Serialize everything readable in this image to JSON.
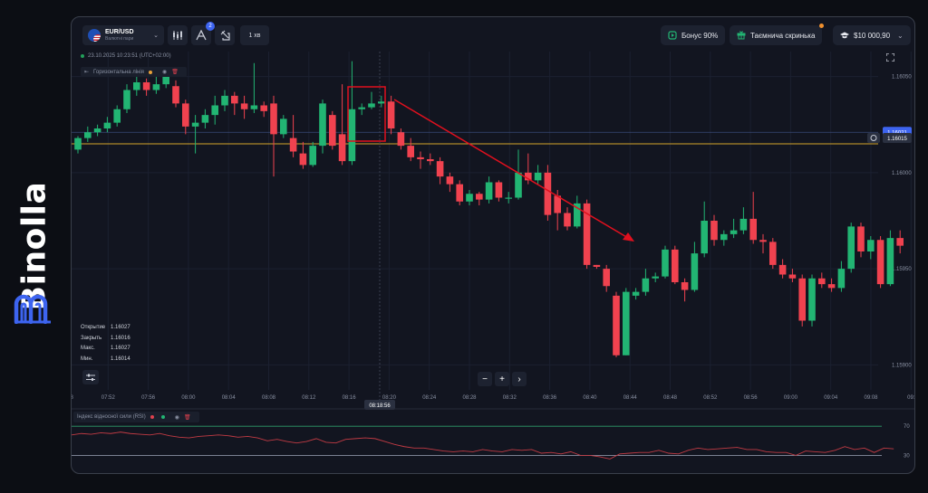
{
  "brand": {
    "name": "Binolla"
  },
  "header": {
    "asset": {
      "pair": "EUR/USD",
      "category": "Валютні пари"
    },
    "indicators_badge": "2",
    "timeframe": "1 хв",
    "bonus_label": "Бонус 90%",
    "mystery_box_label": "Таємнича скринька",
    "balance": "$10 000,90"
  },
  "chart_info": {
    "datetime": "23.10.2025  10:23:51  (UTC+02:00)",
    "drawing_tool_label": "Горизонтальна лінія"
  },
  "ohlc": [
    {
      "label": "Открытие",
      "value": "1.16027"
    },
    {
      "label": "Закрыть",
      "value": "1.16016"
    },
    {
      "label": "Макс.",
      "value": "1.16027"
    },
    {
      "label": "Мин.",
      "value": "1.16014"
    }
  ],
  "zoom": {
    "minus": "−",
    "plus": "+",
    "next": "›"
  },
  "rsi_label": "Індекс відносної сили (RSI)",
  "colors": {
    "up": "#22b573",
    "down": "#f0424f",
    "accent": "#3d64f0",
    "hline": "#d4a52a",
    "arrow": "#e0101e"
  },
  "chart_data": {
    "type": "candlestick",
    "y_ticks": [
      "1.16050",
      "1.16000",
      "1.15950",
      "1.15900"
    ],
    "y_tick_values": [
      1.1605,
      1.16,
      1.1595,
      1.159
    ],
    "x_ticks": [
      "7:48",
      "07:52",
      "07:56",
      "08:00",
      "08:04",
      "08:08",
      "08:12",
      "08:16",
      "08:20",
      "08:24",
      "08:28",
      "08:32",
      "08:36",
      "08:40",
      "08:44",
      "08:48",
      "08:52",
      "08:56",
      "09:00",
      "09:04",
      "09:08",
      "09:"
    ],
    "crosshair_time": "08:18:56",
    "price_labels": {
      "current": "1.16021",
      "horizontal_line": "1.16015"
    },
    "horizontal_line_value": 1.16015,
    "rsi_levels": [
      "70",
      "30"
    ],
    "rsi_level_values": [
      70,
      30
    ],
    "candles": [
      [
        1.16012,
        1.16018,
        1.16019,
        1.1601
      ],
      [
        1.16018,
        1.16021,
        1.16024,
        1.16016
      ],
      [
        1.16021,
        1.16023,
        1.16025,
        1.16019
      ],
      [
        1.16023,
        1.16026,
        1.16029,
        1.16021
      ],
      [
        1.16026,
        1.16033,
        1.16035,
        1.16024
      ],
      [
        1.16033,
        1.16043,
        1.16046,
        1.16031
      ],
      [
        1.16043,
        1.16047,
        1.16052,
        1.1604
      ],
      [
        1.16047,
        1.16043,
        1.16049,
        1.1604
      ],
      [
        1.16043,
        1.16046,
        1.1605,
        1.16041
      ],
      [
        1.16046,
        1.16052,
        1.16055,
        1.16044
      ],
      [
        1.16045,
        1.16036,
        1.16048,
        1.16034
      ],
      [
        1.16036,
        1.16024,
        1.16038,
        1.1602
      ],
      [
        1.16024,
        1.16026,
        1.1603,
        1.1601
      ],
      [
        1.16026,
        1.1603,
        1.16033,
        1.16023
      ],
      [
        1.1603,
        1.16035,
        1.1604,
        1.16025
      ],
      [
        1.16035,
        1.1604,
        1.16043,
        1.16032
      ],
      [
        1.1604,
        1.16036,
        1.16042,
        1.1603
      ],
      [
        1.16036,
        1.16033,
        1.1604,
        1.16028
      ],
      [
        1.16033,
        1.16035,
        1.16057,
        1.16031
      ],
      [
        1.16035,
        1.16032,
        1.16037,
        1.16029
      ],
      [
        1.16036,
        1.1602,
        1.1604,
        1.15998
      ],
      [
        1.1602,
        1.16028,
        1.1603,
        1.16018
      ],
      [
        1.16018,
        1.16011,
        1.1603,
        1.16008
      ],
      [
        1.1601,
        1.16004,
        1.16016,
        1.16002
      ],
      [
        1.16004,
        1.16014,
        1.16016,
        1.16003
      ],
      [
        1.16014,
        1.16036,
        1.16038,
        1.1601
      ],
      [
        1.1603,
        1.16014,
        1.16032,
        1.16012
      ],
      [
        1.1602,
        1.16006,
        1.16046,
        1.16004
      ],
      [
        1.16006,
        1.16033,
        1.16058,
        1.16004
      ],
      [
        1.16033,
        1.16034,
        1.16036,
        1.1603
      ],
      [
        1.16034,
        1.16036,
        1.16042,
        1.16033
      ],
      [
        1.16036,
        1.16037,
        1.1604,
        1.16034
      ],
      [
        1.16037,
        1.16023,
        1.1604,
        1.1602
      ],
      [
        1.16021,
        1.16014,
        1.16023,
        1.16012
      ],
      [
        1.16014,
        1.16008,
        1.16018,
        1.16006
      ],
      [
        1.16008,
        1.16007,
        1.16011,
        1.16002
      ],
      [
        1.16007,
        1.16006,
        1.1601,
        1.16004
      ],
      [
        1.16006,
        1.15998,
        1.16008,
        1.15994
      ],
      [
        1.15998,
        1.15994,
        1.16,
        1.1599
      ],
      [
        1.15994,
        1.15985,
        1.15996,
        1.15983
      ],
      [
        1.15985,
        1.15989,
        1.15991,
        1.15983
      ],
      [
        1.15989,
        1.15986,
        1.1599,
        1.15983
      ],
      [
        1.15986,
        1.15995,
        1.15998,
        1.15984
      ],
      [
        1.15995,
        1.15987,
        1.15996,
        1.15985
      ],
      [
        1.15987,
        1.15987,
        1.1599,
        1.15984
      ],
      [
        1.15987,
        1.16,
        1.16012,
        1.15986
      ],
      [
        1.16,
        1.15996,
        1.1601,
        1.15994
      ],
      [
        1.15996,
        1.16,
        1.16004,
        1.15994
      ],
      [
        1.16,
        1.15978,
        1.16004,
        1.15975
      ],
      [
        1.15988,
        1.15979,
        1.15991,
        1.1597
      ],
      [
        1.15979,
        1.15972,
        1.15982,
        1.1597
      ],
      [
        1.15972,
        1.15984,
        1.15988,
        1.15971
      ],
      [
        1.15984,
        1.15952,
        1.15986,
        1.1595
      ],
      [
        1.15952,
        1.15951,
        1.15952,
        1.1595
      ],
      [
        1.1595,
        1.15941,
        1.15952,
        1.15938
      ],
      [
        1.15936,
        1.15905,
        1.15938,
        1.15904
      ],
      [
        1.15905,
        1.15938,
        1.1594,
        1.15905
      ],
      [
        1.15936,
        1.15938,
        1.1594,
        1.15934
      ],
      [
        1.15938,
        1.15945,
        1.1595,
        1.15936
      ],
      [
        1.15945,
        1.15946,
        1.15948,
        1.15943
      ],
      [
        1.15946,
        1.1596,
        1.15962,
        1.15945
      ],
      [
        1.1596,
        1.15943,
        1.15962,
        1.15942
      ],
      [
        1.15943,
        1.15939,
        1.15945,
        1.15933
      ],
      [
        1.15939,
        1.15958,
        1.15964,
        1.15938
      ],
      [
        1.15958,
        1.15975,
        1.15985,
        1.15956
      ],
      [
        1.15975,
        1.15965,
        1.15978,
        1.15962
      ],
      [
        1.15965,
        1.15968,
        1.1597,
        1.15962
      ],
      [
        1.15968,
        1.1597,
        1.15976,
        1.15966
      ],
      [
        1.1597,
        1.15976,
        1.15982,
        1.15968
      ],
      [
        1.15976,
        1.15965,
        1.1599,
        1.15963
      ],
      [
        1.15965,
        1.15964,
        1.15968,
        1.15958
      ],
      [
        1.15964,
        1.15952,
        1.15966,
        1.1595
      ],
      [
        1.15952,
        1.15947,
        1.15955,
        1.15945
      ],
      [
        1.15947,
        1.15945,
        1.1595,
        1.15943
      ],
      [
        1.15945,
        1.15923,
        1.15947,
        1.1592
      ],
      [
        1.15923,
        1.15945,
        1.15947,
        1.1592
      ],
      [
        1.15945,
        1.15942,
        1.15948,
        1.1594
      ],
      [
        1.15942,
        1.1594,
        1.15945,
        1.15938
      ],
      [
        1.1594,
        1.1595,
        1.15954,
        1.15938
      ],
      [
        1.1595,
        1.15972,
        1.15974,
        1.15948
      ],
      [
        1.15972,
        1.15959,
        1.15974,
        1.15956
      ],
      [
        1.15959,
        1.15965,
        1.15967,
        1.15955
      ],
      [
        1.15965,
        1.15942,
        1.15967,
        1.1594
      ],
      [
        1.15942,
        1.15966,
        1.1597,
        1.15941
      ],
      [
        1.15966,
        1.15962,
        1.1597,
        1.15958
      ]
    ],
    "rsi": [
      58,
      60,
      59,
      61,
      60,
      62,
      60,
      59,
      58,
      60,
      57,
      55,
      54,
      56,
      57,
      58,
      57,
      55,
      56,
      54,
      50,
      52,
      49,
      47,
      49,
      53,
      48,
      47,
      52,
      53,
      54,
      53,
      49,
      45,
      42,
      40,
      40,
      38,
      36,
      35,
      36,
      35,
      38,
      36,
      35,
      38,
      37,
      38,
      33,
      34,
      32,
      35,
      30,
      30,
      28,
      25,
      32,
      33,
      34,
      34,
      37,
      33,
      32,
      37,
      40,
      38,
      39,
      40,
      41,
      38,
      38,
      35,
      34,
      34,
      30,
      36,
      35,
      34,
      37,
      42,
      38,
      40,
      34,
      40,
      39
    ]
  }
}
